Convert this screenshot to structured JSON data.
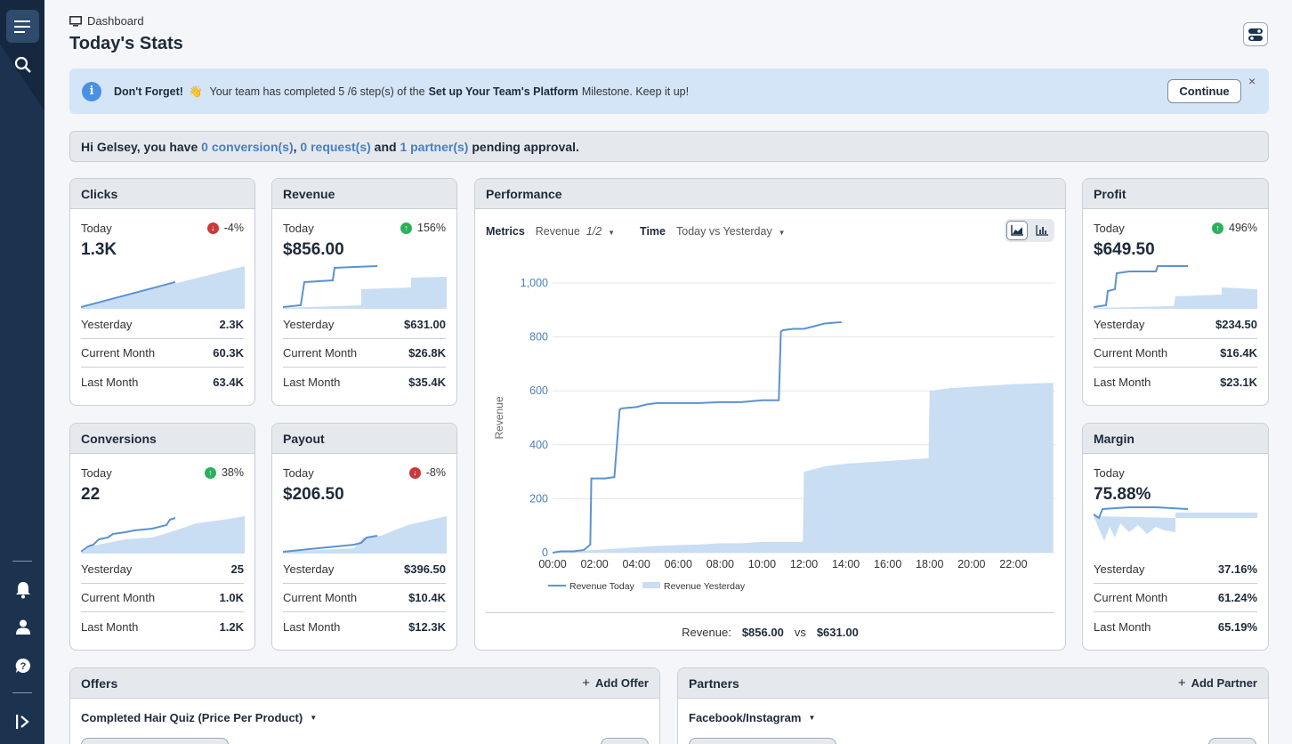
{
  "breadcrumb": {
    "label": "Dashboard"
  },
  "page_title": "Today's Stats",
  "banner": {
    "lead": "Don't Forget!",
    "emoji": "👋",
    "text_before": "Your team has completed 5 /6 step(s) of the",
    "milestone": "Set up Your Team's Platform",
    "text_after": "Milestone. Keep it up!",
    "continue_label": "Continue",
    "close_label": "×"
  },
  "pending": {
    "greeting": "Hi Gelsey, you have",
    "conversions": "0 conversion(s)",
    "requests": "0 request(s)",
    "and": "and",
    "partners": "1 partner(s)",
    "tail": "pending approval."
  },
  "cards": {
    "clicks": {
      "title": "Clicks",
      "today": "Today",
      "delta": "-4%",
      "dir": "down",
      "value": "1.3K",
      "rows": [
        [
          "Yesterday",
          "2.3K"
        ],
        [
          "Current Month",
          "60.3K"
        ],
        [
          "Last Month",
          "63.4K"
        ]
      ]
    },
    "revenue": {
      "title": "Revenue",
      "today": "Today",
      "delta": "156%",
      "dir": "up",
      "value": "$856.00",
      "rows": [
        [
          "Yesterday",
          "$631.00"
        ],
        [
          "Current Month",
          "$26.8K"
        ],
        [
          "Last Month",
          "$35.4K"
        ]
      ]
    },
    "conversions": {
      "title": "Conversions",
      "today": "Today",
      "delta": "38%",
      "dir": "up",
      "value": "22",
      "rows": [
        [
          "Yesterday",
          "25"
        ],
        [
          "Current Month",
          "1.0K"
        ],
        [
          "Last Month",
          "1.2K"
        ]
      ]
    },
    "payout": {
      "title": "Payout",
      "today": "Today",
      "delta": "-8%",
      "dir": "down",
      "value": "$206.50",
      "rows": [
        [
          "Yesterday",
          "$396.50"
        ],
        [
          "Current Month",
          "$10.4K"
        ],
        [
          "Last Month",
          "$12.3K"
        ]
      ]
    },
    "profit": {
      "title": "Profit",
      "today": "Today",
      "delta": "496%",
      "dir": "up",
      "value": "$649.50",
      "rows": [
        [
          "Yesterday",
          "$234.50"
        ],
        [
          "Current Month",
          "$16.4K"
        ],
        [
          "Last Month",
          "$23.1K"
        ]
      ]
    },
    "margin": {
      "title": "Margin",
      "today": "Today",
      "value": "75.88%",
      "rows": [
        [
          "Yesterday",
          "37.16%"
        ],
        [
          "Current Month",
          "61.24%"
        ],
        [
          "Last Month",
          "65.19%"
        ]
      ]
    }
  },
  "performance": {
    "title": "Performance",
    "metrics_label": "Metrics",
    "metrics_value": "Revenue",
    "metrics_count": "1/2",
    "time_label": "Time",
    "time_value": "Today vs Yesterday",
    "footer_label": "Revenue:",
    "footer_today": "$856.00",
    "footer_vs": "vs",
    "footer_yesterday": "$631.00"
  },
  "chart_data": {
    "type": "line",
    "ylabel": "Revenue",
    "ylim": [
      0,
      1000
    ],
    "yticks": [
      "0",
      "200",
      "400",
      "600",
      "800",
      "1,000"
    ],
    "xticks": [
      "00:00",
      "02:00",
      "04:00",
      "06:00",
      "08:00",
      "10:00",
      "12:00",
      "14:00",
      "16:00",
      "18:00",
      "20:00",
      "22:00"
    ],
    "legend": "bottom",
    "series": [
      {
        "name": "Revenue Today",
        "style": "line",
        "color": "#5b93cf",
        "x": [
          0,
          0.4,
          1.0,
          1.5,
          1.8,
          1.85,
          2.5,
          2.95,
          3.2,
          3.3,
          4.0,
          4.5,
          5.0,
          6.0,
          7.0,
          8.0,
          9.0,
          10.0,
          10.8,
          10.9,
          11.0,
          11.5,
          12.0,
          12.5,
          13.0,
          13.8
        ],
        "y": [
          0,
          5,
          5,
          10,
          30,
          275,
          275,
          280,
          530,
          535,
          540,
          550,
          555,
          555,
          555,
          558,
          558,
          565,
          565,
          820,
          825,
          830,
          830,
          840,
          850,
          855
        ]
      },
      {
        "name": "Revenue Yesterday",
        "style": "area",
        "color": "#c9ddf3",
        "x": [
          0,
          1.0,
          2.0,
          3.0,
          4.0,
          5.0,
          6.0,
          7.0,
          8.0,
          9.0,
          10.0,
          11.0,
          11.95,
          12.0,
          13.0,
          14.0,
          15.0,
          16.0,
          17.0,
          17.95,
          18.0,
          19.0,
          20.0,
          21.0,
          22.0,
          23.9
        ],
        "y": [
          0,
          5,
          10,
          15,
          20,
          25,
          28,
          30,
          35,
          35,
          40,
          40,
          40,
          300,
          320,
          330,
          335,
          340,
          345,
          350,
          600,
          610,
          615,
          620,
          625,
          630
        ]
      }
    ]
  },
  "offers": {
    "title": "Offers",
    "add_label": "Add Offer",
    "selected": "Completed Hair Quiz (Price Per Product)"
  },
  "partners": {
    "title": "Partners",
    "add_label": "Add Partner",
    "selected": "Facebook/Instagram"
  },
  "colors": {
    "accent": "#4a7fc0",
    "sidebar": "#1c3350",
    "line": "#5b93cf",
    "area": "#c9ddf3"
  }
}
